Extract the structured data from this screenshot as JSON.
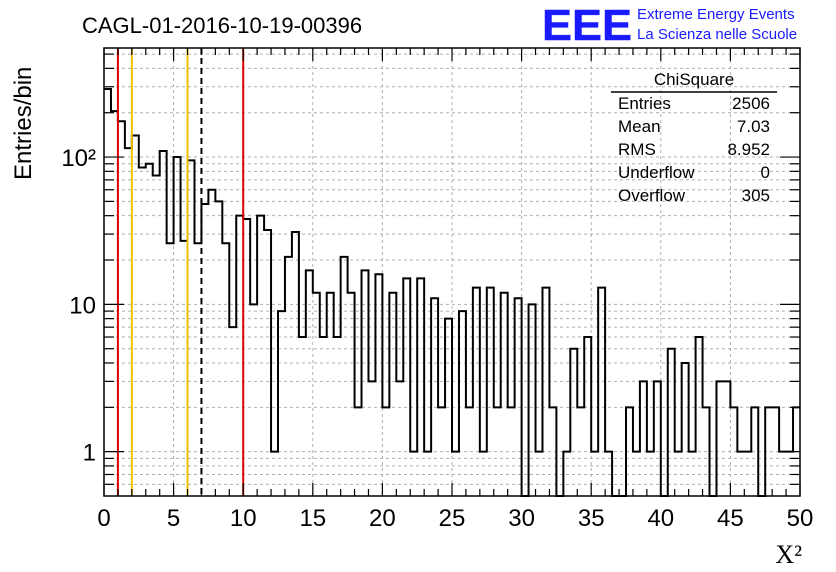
{
  "header": {
    "run_title": "CAGL-01-2016-10-19-00396",
    "logo_text": "EEE",
    "logo_line1": "Extreme Energy Events",
    "logo_line2": "La Scienza nelle Scuole"
  },
  "colors": {
    "logo_blue": "#1a1aff",
    "red_line": "#e00000",
    "yellow_line": "#f0c000",
    "histogram": "#000000",
    "grid": "#b0b0b0"
  },
  "stats": {
    "title": "ChiSquare",
    "rows": [
      {
        "label": "Entries",
        "value": "2506"
      },
      {
        "label": "Mean",
        "value": "7.03"
      },
      {
        "label": "RMS",
        "value": "8.952"
      },
      {
        "label": "Underflow",
        "value": "0"
      },
      {
        "label": "Overflow",
        "value": "305"
      }
    ]
  },
  "chart_data": {
    "type": "histogram",
    "title": "CAGL-01-2016-10-19-00396",
    "xlabel": "X²",
    "ylabel": "Entries/bin",
    "xlim": [
      0,
      50
    ],
    "ylim": [
      0.5,
      550
    ],
    "yscale": "log",
    "grid": true,
    "bin_width": 0.5,
    "x_ticks": [
      0,
      5,
      10,
      15,
      20,
      25,
      30,
      35,
      40,
      45,
      50
    ],
    "y_ticks": [
      {
        "value": 1,
        "label": "1"
      },
      {
        "value": 10,
        "label": "10"
      },
      {
        "value": 100,
        "label": "10²"
      }
    ],
    "values": [
      290,
      205,
      175,
      115,
      140,
      85,
      90,
      75,
      110,
      26,
      100,
      27,
      95,
      26,
      48,
      60,
      50,
      26,
      7,
      40,
      38,
      10,
      40,
      32,
      1,
      9,
      21,
      31,
      6,
      17,
      12,
      6,
      12,
      6,
      21,
      12,
      2,
      17,
      3,
      16,
      2,
      12,
      3,
      15,
      1,
      15,
      1,
      11,
      2,
      8,
      1,
      9,
      2,
      13,
      1,
      13,
      2,
      12,
      2,
      11,
      0,
      10,
      1,
      13,
      2,
      0,
      1,
      5,
      2,
      6,
      1,
      13,
      1,
      0,
      0,
      2,
      1,
      3,
      1,
      3,
      0,
      5,
      1,
      4,
      1,
      6,
      2,
      0,
      3,
      3,
      2,
      1,
      1,
      2,
      0,
      2,
      2,
      1,
      1,
      2
    ],
    "vertical_lines": [
      {
        "x": 1,
        "color": "red",
        "style": "solid"
      },
      {
        "x": 2,
        "color": "yellow",
        "style": "solid"
      },
      {
        "x": 6,
        "color": "yellow",
        "style": "solid"
      },
      {
        "x": 7,
        "color": "black",
        "style": "dashed"
      },
      {
        "x": 10,
        "color": "red",
        "style": "solid"
      }
    ]
  }
}
